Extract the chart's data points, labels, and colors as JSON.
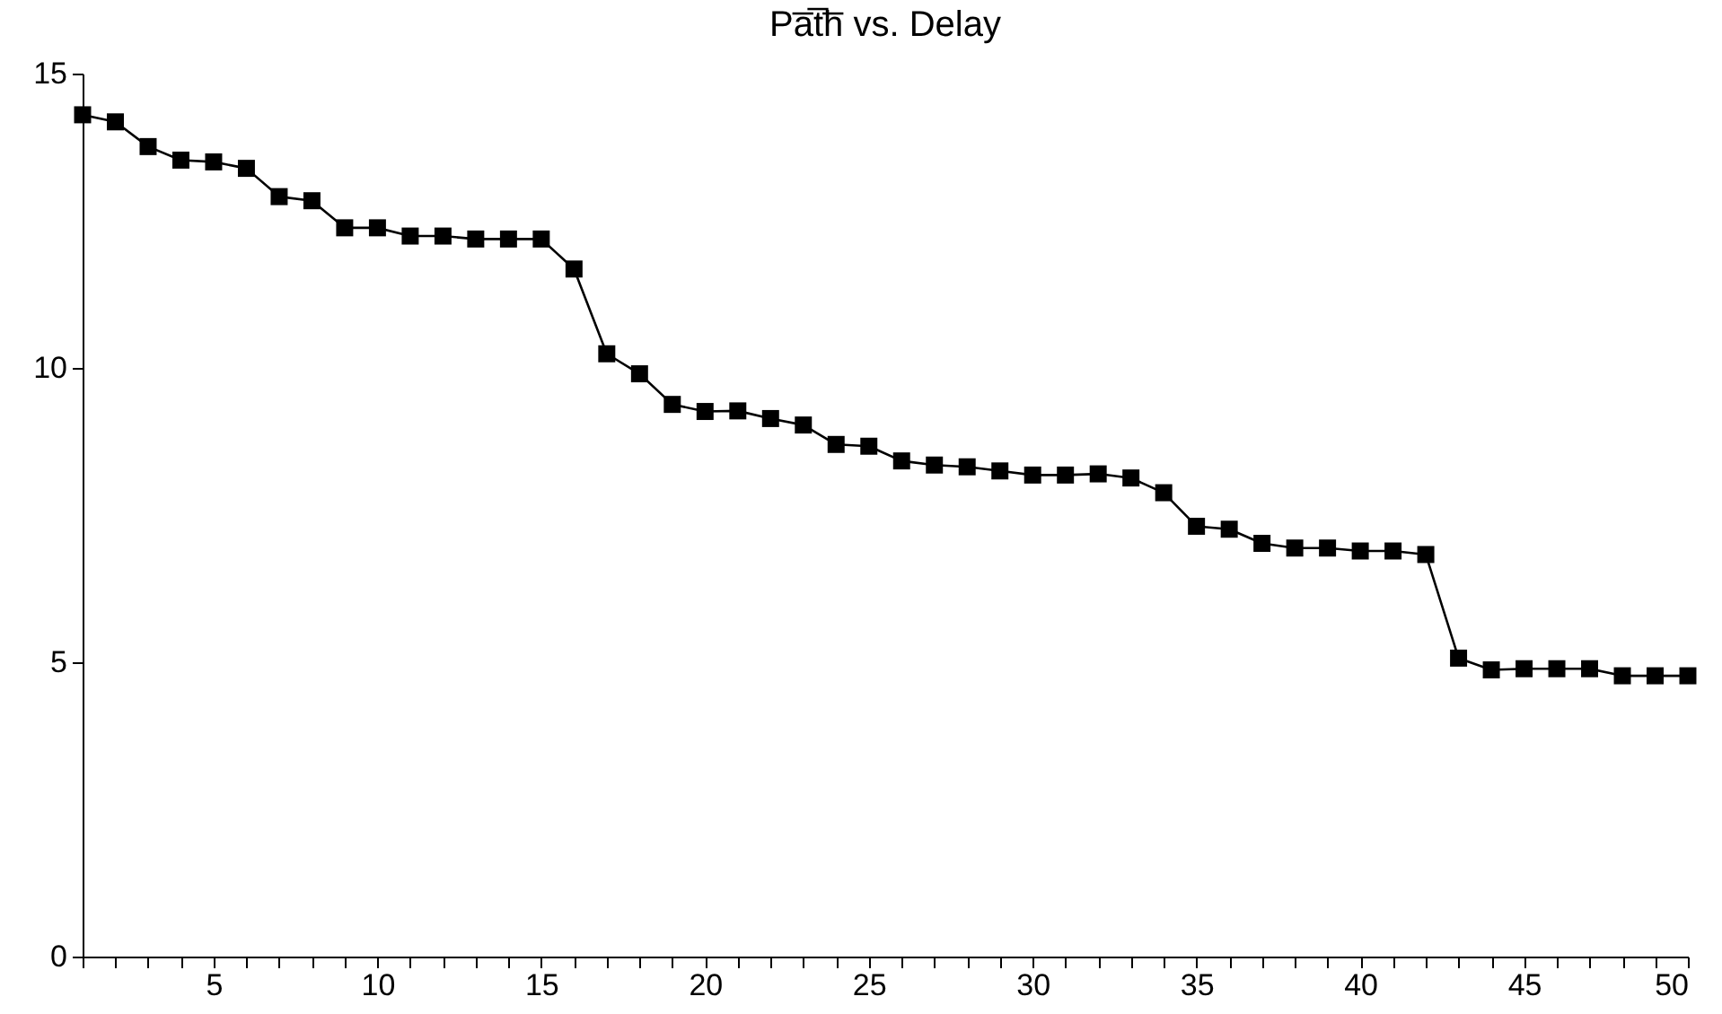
{
  "chart_data": {
    "type": "line",
    "title": "Pa̅t̅h̅ vs. Delay",
    "x": [
      1,
      2,
      3,
      4,
      5,
      6,
      7,
      8,
      9,
      10,
      11,
      12,
      13,
      14,
      15,
      16,
      17,
      18,
      19,
      20,
      21,
      22,
      23,
      24,
      25,
      26,
      27,
      28,
      29,
      30,
      31,
      32,
      33,
      34,
      35,
      36,
      37,
      38,
      39,
      40,
      41,
      42,
      43,
      44,
      45,
      46,
      47,
      48,
      49,
      50
    ],
    "series": [
      {
        "color": "#000000",
        "values": [
          14.3,
          14.18,
          13.76,
          13.53,
          13.5,
          13.39,
          12.91,
          12.84,
          12.38,
          12.38,
          12.24,
          12.24,
          12.19,
          12.19,
          12.19,
          11.68,
          10.24,
          9.9,
          9.38,
          9.26,
          9.27,
          9.14,
          9.03,
          8.7,
          8.67,
          8.42,
          8.35,
          8.32,
          8.25,
          8.18,
          8.18,
          8.2,
          8.13,
          7.88,
          7.31,
          7.26,
          7.02,
          6.94,
          6.94,
          6.89,
          6.89,
          6.83,
          5.07,
          4.87,
          4.89,
          4.89,
          4.89,
          4.77,
          4.77,
          4.77
        ]
      }
    ],
    "xlim": [
      1,
      50
    ],
    "xticks": [
      {
        "value": 1,
        "label": null
      },
      {
        "value": 2,
        "label": null
      },
      {
        "value": 3,
        "label": null
      },
      {
        "value": 4,
        "label": null
      },
      5,
      {
        "value": 6,
        "label": null
      },
      {
        "value": 7,
        "label": null
      },
      {
        "value": 8,
        "label": null
      },
      {
        "value": 9,
        "label": null
      },
      10,
      {
        "value": 11,
        "label": null
      },
      {
        "value": 12,
        "label": null
      },
      {
        "value": 13,
        "label": null
      },
      {
        "value": 14,
        "label": null
      },
      15,
      {
        "value": 16,
        "label": null
      },
      {
        "value": 17,
        "label": null
      },
      {
        "value": 18,
        "label": null
      },
      {
        "value": 19,
        "label": null
      },
      20,
      {
        "value": 21,
        "label": null
      },
      {
        "value": 22,
        "label": null
      },
      {
        "value": 23,
        "label": null
      },
      {
        "value": 24,
        "label": null
      },
      25,
      {
        "value": 26,
        "label": null
      },
      {
        "value": 27,
        "label": null
      },
      {
        "value": 28,
        "label": null
      },
      {
        "value": 29,
        "label": null
      },
      30,
      {
        "value": 31,
        "label": null
      },
      {
        "value": 32,
        "label": null
      },
      {
        "value": 33,
        "label": null
      },
      {
        "value": 34,
        "label": null
      },
      35,
      {
        "value": 36,
        "label": null
      },
      {
        "value": 37,
        "label": null
      },
      {
        "value": 38,
        "label": null
      },
      {
        "value": 39,
        "label": null
      },
      40,
      {
        "value": 41,
        "label": null
      },
      {
        "value": 42,
        "label": null
      },
      {
        "value": 43,
        "label": null
      },
      {
        "value": 44,
        "label": null
      },
      45,
      {
        "value": 46,
        "label": null
      },
      {
        "value": 47,
        "label": null
      },
      {
        "value": 48,
        "label": null
      },
      {
        "value": 49,
        "label": null
      },
      50
    ],
    "ylim": [
      0,
      15
    ],
    "yticks": [
      0,
      5,
      10,
      15
    ],
    "grid": false,
    "marker": "square",
    "line_style": "solid"
  }
}
